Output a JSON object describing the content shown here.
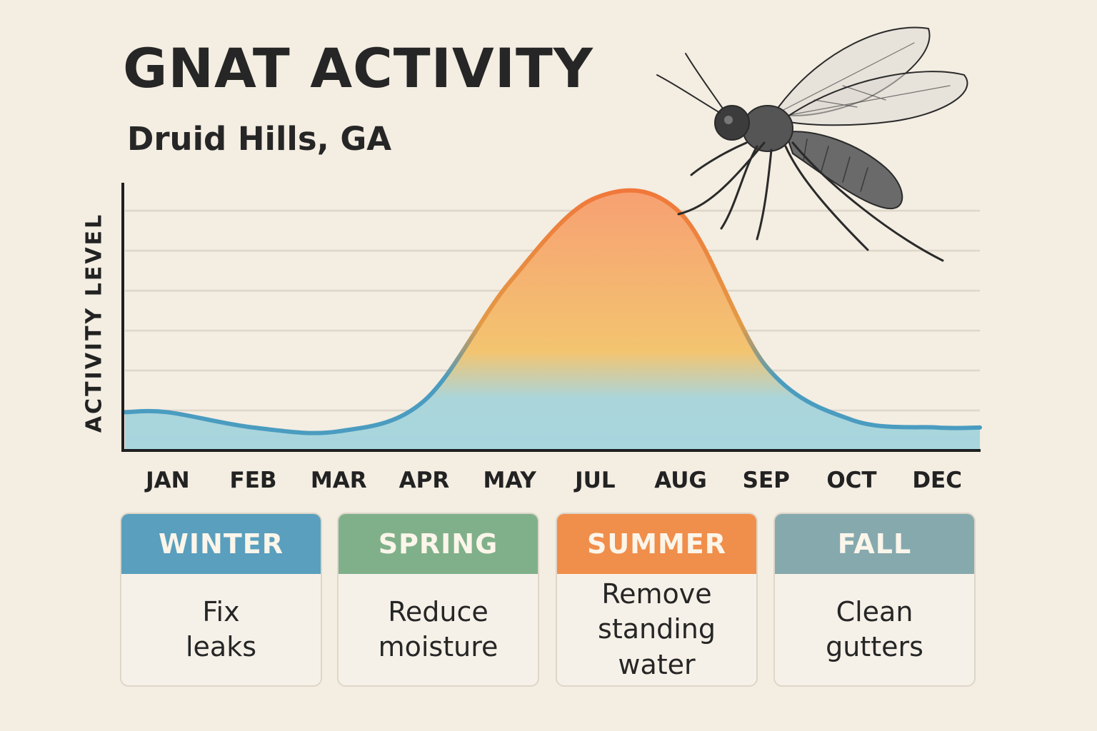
{
  "title": "GNAT ACTIVITY",
  "subtitle": "Druid Hills, GA",
  "chart_data": {
    "type": "area",
    "ylabel": "ACTIVITY LEVEL",
    "categories": [
      "JAN",
      "FEB",
      "MAR",
      "APR",
      "MAY",
      "JUL",
      "AUG",
      "SEP",
      "OCT",
      "DEC"
    ],
    "values": [
      10,
      6,
      5,
      13,
      44,
      66,
      62,
      22,
      8,
      6
    ],
    "ylim": [
      0,
      70
    ],
    "grid": true,
    "colors": {
      "low": "#4a9cc0",
      "high": "#f08a3c",
      "fill_low": "#a8d5de",
      "fill_high": "#f7a870"
    }
  },
  "seasons": [
    {
      "name": "WINTER",
      "tip": "Fix\nleaks",
      "color": "#5a9fbd"
    },
    {
      "name": "SPRING",
      "tip": "Reduce\nmoisture",
      "color": "#7fb08a"
    },
    {
      "name": "SUMMER",
      "tip": "Remove\nstanding water",
      "color": "#f08e4b"
    },
    {
      "name": "FALL",
      "tip": "Clean\ngutters",
      "color": "#86a9ae"
    }
  ],
  "illustration": "gnat"
}
